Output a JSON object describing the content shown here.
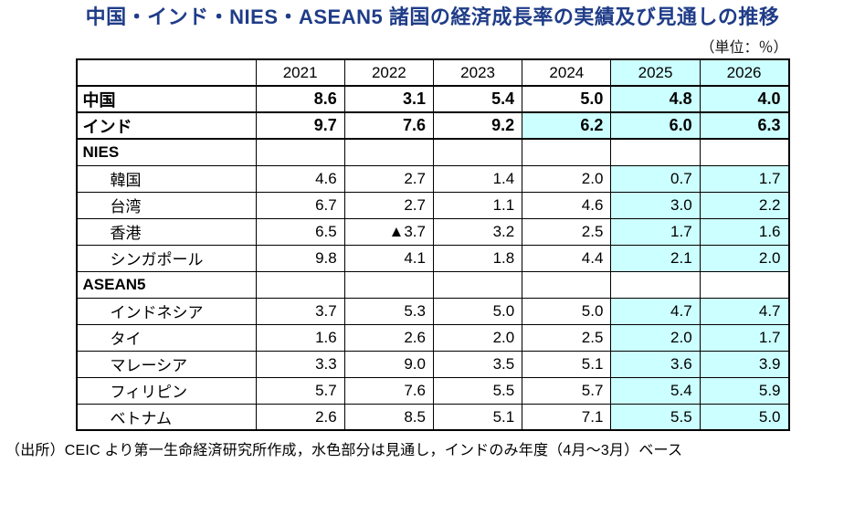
{
  "title": "中国・インド・NIES・ASEAN5 諸国の経済成長率の実績及び見通しの推移",
  "unit_label": "（単位：％）",
  "footnote": "（出所）CEIC より第一生命経済研究所作成，水色部分は見通し，インドのみ年度（4月～3月）ベース",
  "colors": {
    "title": "#1f3c88",
    "forecast_bg": "#ccffff",
    "border": "#000000"
  },
  "table": {
    "year_headers": [
      "2021",
      "2022",
      "2023",
      "2024",
      "2025",
      "2026"
    ],
    "rows": [
      {
        "label": "中国",
        "values": [
          "8.6",
          "3.1",
          "5.4",
          "5.0",
          "4.8",
          "4.0"
        ]
      },
      {
        "label": "インド",
        "values": [
          "9.7",
          "7.6",
          "9.2",
          "6.2",
          "6.0",
          "6.3"
        ]
      },
      {
        "label": "NIES",
        "values": [
          "",
          "",
          "",
          "",
          "",
          ""
        ]
      },
      {
        "label": "韓国",
        "values": [
          "4.6",
          "2.7",
          "1.4",
          "2.0",
          "0.7",
          "1.7"
        ]
      },
      {
        "label": "台湾",
        "values": [
          "6.7",
          "2.7",
          "1.1",
          "4.6",
          "3.0",
          "2.2"
        ]
      },
      {
        "label": "香港",
        "values": [
          "6.5",
          "▲3.7",
          "3.2",
          "2.5",
          "1.7",
          "1.6"
        ]
      },
      {
        "label": "シンガポール",
        "values": [
          "9.8",
          "4.1",
          "1.8",
          "4.4",
          "2.1",
          "2.0"
        ]
      },
      {
        "label": "ASEAN5",
        "values": [
          "",
          "",
          "",
          "",
          "",
          ""
        ]
      },
      {
        "label": "インドネシア",
        "values": [
          "3.7",
          "5.3",
          "5.0",
          "5.0",
          "4.7",
          "4.7"
        ]
      },
      {
        "label": "タイ",
        "values": [
          "1.6",
          "2.6",
          "2.0",
          "2.5",
          "2.0",
          "1.7"
        ]
      },
      {
        "label": "マレーシア",
        "values": [
          "3.3",
          "9.0",
          "3.5",
          "5.1",
          "3.6",
          "3.9"
        ]
      },
      {
        "label": "フィリピン",
        "values": [
          "5.7",
          "7.6",
          "5.5",
          "5.7",
          "5.4",
          "5.9"
        ]
      },
      {
        "label": "ベトナム",
        "values": [
          "2.6",
          "8.5",
          "5.1",
          "7.1",
          "5.5",
          "5.0"
        ]
      }
    ]
  }
}
